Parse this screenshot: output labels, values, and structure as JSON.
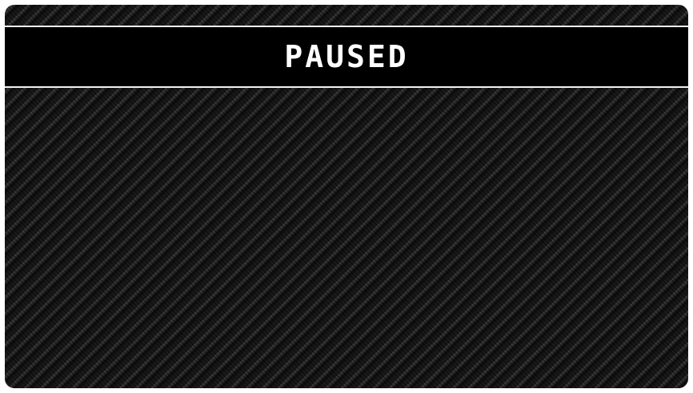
{
  "pause_menu": {
    "title": "PAUSED"
  },
  "colors": {
    "banner_background": "#000000",
    "banner_border": "#f2f2f2",
    "title_text": "#ffffff",
    "carbon_dark": "#151515",
    "carbon_light": "#3a3a3a"
  }
}
